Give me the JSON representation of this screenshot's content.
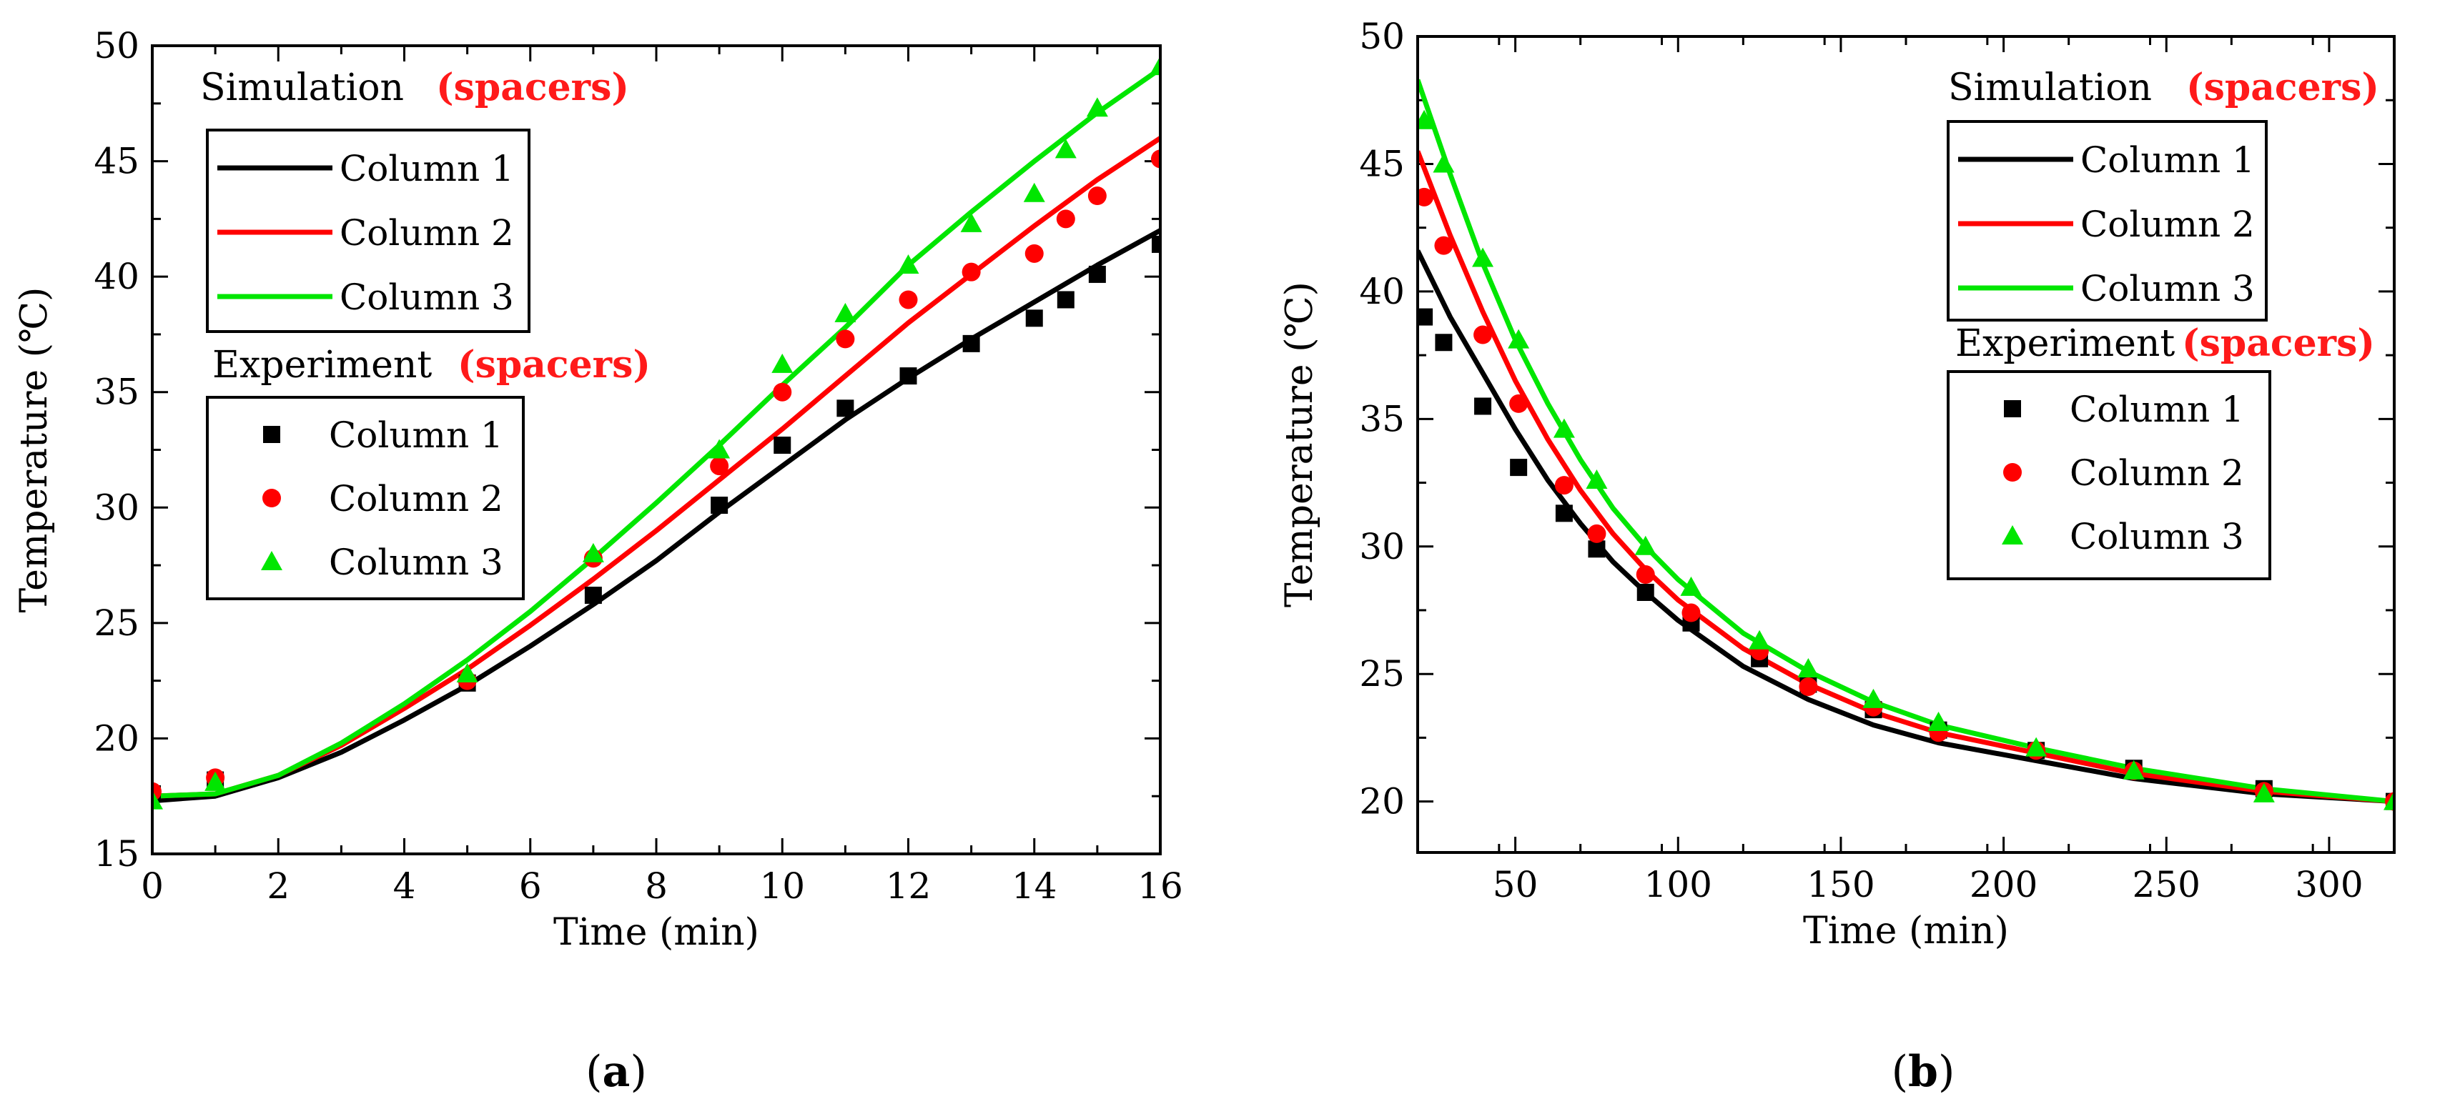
{
  "colors": {
    "col1": "#000000",
    "col2": "#ff0000",
    "col3": "#00e600",
    "accent": "#ff1a1a"
  },
  "chart_data": [
    {
      "id": "a",
      "type": "line",
      "caption": {
        "open": "(",
        "letter": "a",
        "close": ")"
      },
      "xlabel": "Time (min)",
      "ylabel": "Temperature (℃)",
      "xlim": [
        0,
        16
      ],
      "ylim": [
        15,
        50
      ],
      "xticks": [
        0,
        2,
        4,
        6,
        8,
        10,
        12,
        14,
        16
      ],
      "yticks": [
        15,
        20,
        25,
        30,
        35,
        40,
        45,
        50
      ],
      "legend": {
        "sim_title": "Simulation",
        "sim_tag": "(spacers)",
        "exp_title": "Experiment",
        "exp_tag": "(spacers)",
        "sim_labels": [
          "Column 1",
          "Column 2",
          "Column 3"
        ],
        "exp_labels": [
          "Column 1",
          "Column 2",
          "Column 3"
        ]
      },
      "simulation": [
        {
          "name": "Column 1",
          "x": [
            0,
            1,
            2,
            3,
            4,
            5,
            6,
            7,
            8,
            9,
            10,
            11,
            12,
            13,
            14,
            15,
            16
          ],
          "y": [
            17.3,
            17.5,
            18.3,
            19.4,
            20.8,
            22.3,
            24.0,
            25.8,
            27.7,
            29.8,
            31.8,
            33.8,
            35.6,
            37.3,
            38.9,
            40.5,
            42.0
          ]
        },
        {
          "name": "Column 2",
          "x": [
            0,
            1,
            2,
            3,
            4,
            5,
            6,
            7,
            8,
            9,
            10,
            11,
            12,
            13,
            14,
            15,
            16
          ],
          "y": [
            17.5,
            17.6,
            18.4,
            19.7,
            21.3,
            23.0,
            24.9,
            26.9,
            29.0,
            31.2,
            33.4,
            35.7,
            38.0,
            40.1,
            42.2,
            44.2,
            46.0
          ]
        },
        {
          "name": "Column 3",
          "x": [
            0,
            1,
            2,
            3,
            4,
            5,
            6,
            7,
            8,
            9,
            10,
            11,
            12,
            13,
            14,
            15,
            16
          ],
          "y": [
            17.5,
            17.6,
            18.4,
            19.8,
            21.5,
            23.4,
            25.5,
            27.8,
            30.2,
            32.7,
            35.3,
            37.8,
            40.5,
            42.8,
            45.0,
            47.1,
            49.0
          ]
        }
      ],
      "experiment": [
        {
          "name": "Column 1",
          "marker": "square",
          "x": [
            0,
            1,
            5,
            7,
            9,
            10,
            11,
            12,
            13,
            14,
            14.5,
            15,
            16
          ],
          "y": [
            17.6,
            18.2,
            22.4,
            26.2,
            30.1,
            32.7,
            34.3,
            35.7,
            37.1,
            38.2,
            39.0,
            40.1,
            41.4
          ]
        },
        {
          "name": "Column 2",
          "marker": "circle",
          "x": [
            0,
            1,
            5,
            7,
            9,
            10,
            11,
            12,
            13,
            14,
            14.5,
            15,
            16
          ],
          "y": [
            17.7,
            18.3,
            22.5,
            27.8,
            31.8,
            35.0,
            37.3,
            39.0,
            40.2,
            41.0,
            42.5,
            43.5,
            45.1
          ]
        },
        {
          "name": "Column 3",
          "marker": "triangle",
          "x": [
            0,
            1,
            5,
            7,
            9,
            10,
            11,
            12,
            13,
            14,
            14.5,
            15,
            16
          ],
          "y": [
            17.3,
            18.1,
            22.8,
            28.0,
            32.5,
            36.2,
            38.4,
            40.5,
            42.3,
            43.6,
            45.5,
            47.3,
            49.1
          ]
        }
      ]
    },
    {
      "id": "b",
      "type": "line",
      "caption": {
        "open": "(",
        "letter": "b",
        "close": ")"
      },
      "xlabel": "Time (min)",
      "ylabel": "Temperature (℃)",
      "xlim": [
        20,
        320
      ],
      "ylim": [
        18,
        50
      ],
      "xticks": [
        50,
        100,
        150,
        200,
        250,
        300
      ],
      "yticks": [
        20,
        25,
        30,
        35,
        40,
        45,
        50
      ],
      "legend": {
        "sim_title": "Simulation",
        "sim_tag": "(spacers)",
        "exp_title": "Experiment",
        "exp_tag": "(spacers)",
        "sim_labels": [
          "Column 1",
          "Column 2",
          "Column 3"
        ],
        "exp_labels": [
          "Column 1",
          "Column 2",
          "Column 3"
        ]
      },
      "simulation": [
        {
          "name": "Column 1",
          "x": [
            20,
            30,
            40,
            50,
            60,
            70,
            80,
            90,
            100,
            120,
            140,
            160,
            180,
            210,
            240,
            280,
            320
          ],
          "y": [
            41.6,
            39.0,
            36.8,
            34.6,
            32.6,
            30.9,
            29.4,
            28.2,
            27.1,
            25.3,
            24.0,
            23.0,
            22.3,
            21.6,
            20.9,
            20.3,
            20.0
          ]
        },
        {
          "name": "Column 2",
          "x": [
            20,
            30,
            40,
            50,
            60,
            70,
            80,
            90,
            100,
            120,
            140,
            160,
            180,
            210,
            240,
            280,
            320
          ],
          "y": [
            45.5,
            42.2,
            39.2,
            36.5,
            34.2,
            32.2,
            30.5,
            29.1,
            27.9,
            26.0,
            24.6,
            23.5,
            22.7,
            21.9,
            21.1,
            20.4,
            20.0
          ]
        },
        {
          "name": "Column 3",
          "x": [
            20,
            30,
            40,
            50,
            60,
            70,
            80,
            90,
            100,
            120,
            140,
            160,
            180,
            210,
            240,
            280,
            320
          ],
          "y": [
            48.3,
            44.6,
            41.1,
            38.1,
            35.6,
            33.4,
            31.5,
            30.0,
            28.7,
            26.6,
            25.1,
            23.9,
            23.0,
            22.1,
            21.3,
            20.5,
            20.0
          ]
        }
      ],
      "experiment": [
        {
          "name": "Column 1",
          "marker": "square",
          "x": [
            22,
            28,
            40,
            51,
            65,
            75,
            90,
            104,
            125,
            140,
            160,
            180,
            210,
            240,
            280,
            320
          ],
          "y": [
            39.0,
            38.0,
            35.5,
            33.1,
            31.3,
            29.9,
            28.2,
            27.0,
            25.6,
            24.6,
            23.6,
            22.8,
            22.0,
            21.3,
            20.5,
            20.0
          ]
        },
        {
          "name": "Column 2",
          "marker": "circle",
          "x": [
            22,
            28,
            40,
            51,
            65,
            75,
            90,
            104,
            125,
            140,
            160,
            180,
            210,
            240,
            280,
            320
          ],
          "y": [
            43.7,
            41.8,
            38.3,
            35.6,
            32.4,
            30.5,
            28.9,
            27.4,
            25.9,
            24.5,
            23.7,
            22.7,
            22.0,
            21.2,
            20.4,
            20.0
          ]
        },
        {
          "name": "Column 3",
          "marker": "triangle",
          "x": [
            22,
            28,
            40,
            51,
            65,
            75,
            90,
            104,
            125,
            140,
            160,
            180,
            210,
            240,
            280,
            320
          ],
          "y": [
            46.7,
            45.0,
            41.3,
            38.1,
            34.6,
            32.6,
            30.0,
            28.4,
            26.3,
            25.2,
            24.0,
            23.1,
            22.1,
            21.2,
            20.3,
            20.0
          ]
        }
      ]
    }
  ]
}
